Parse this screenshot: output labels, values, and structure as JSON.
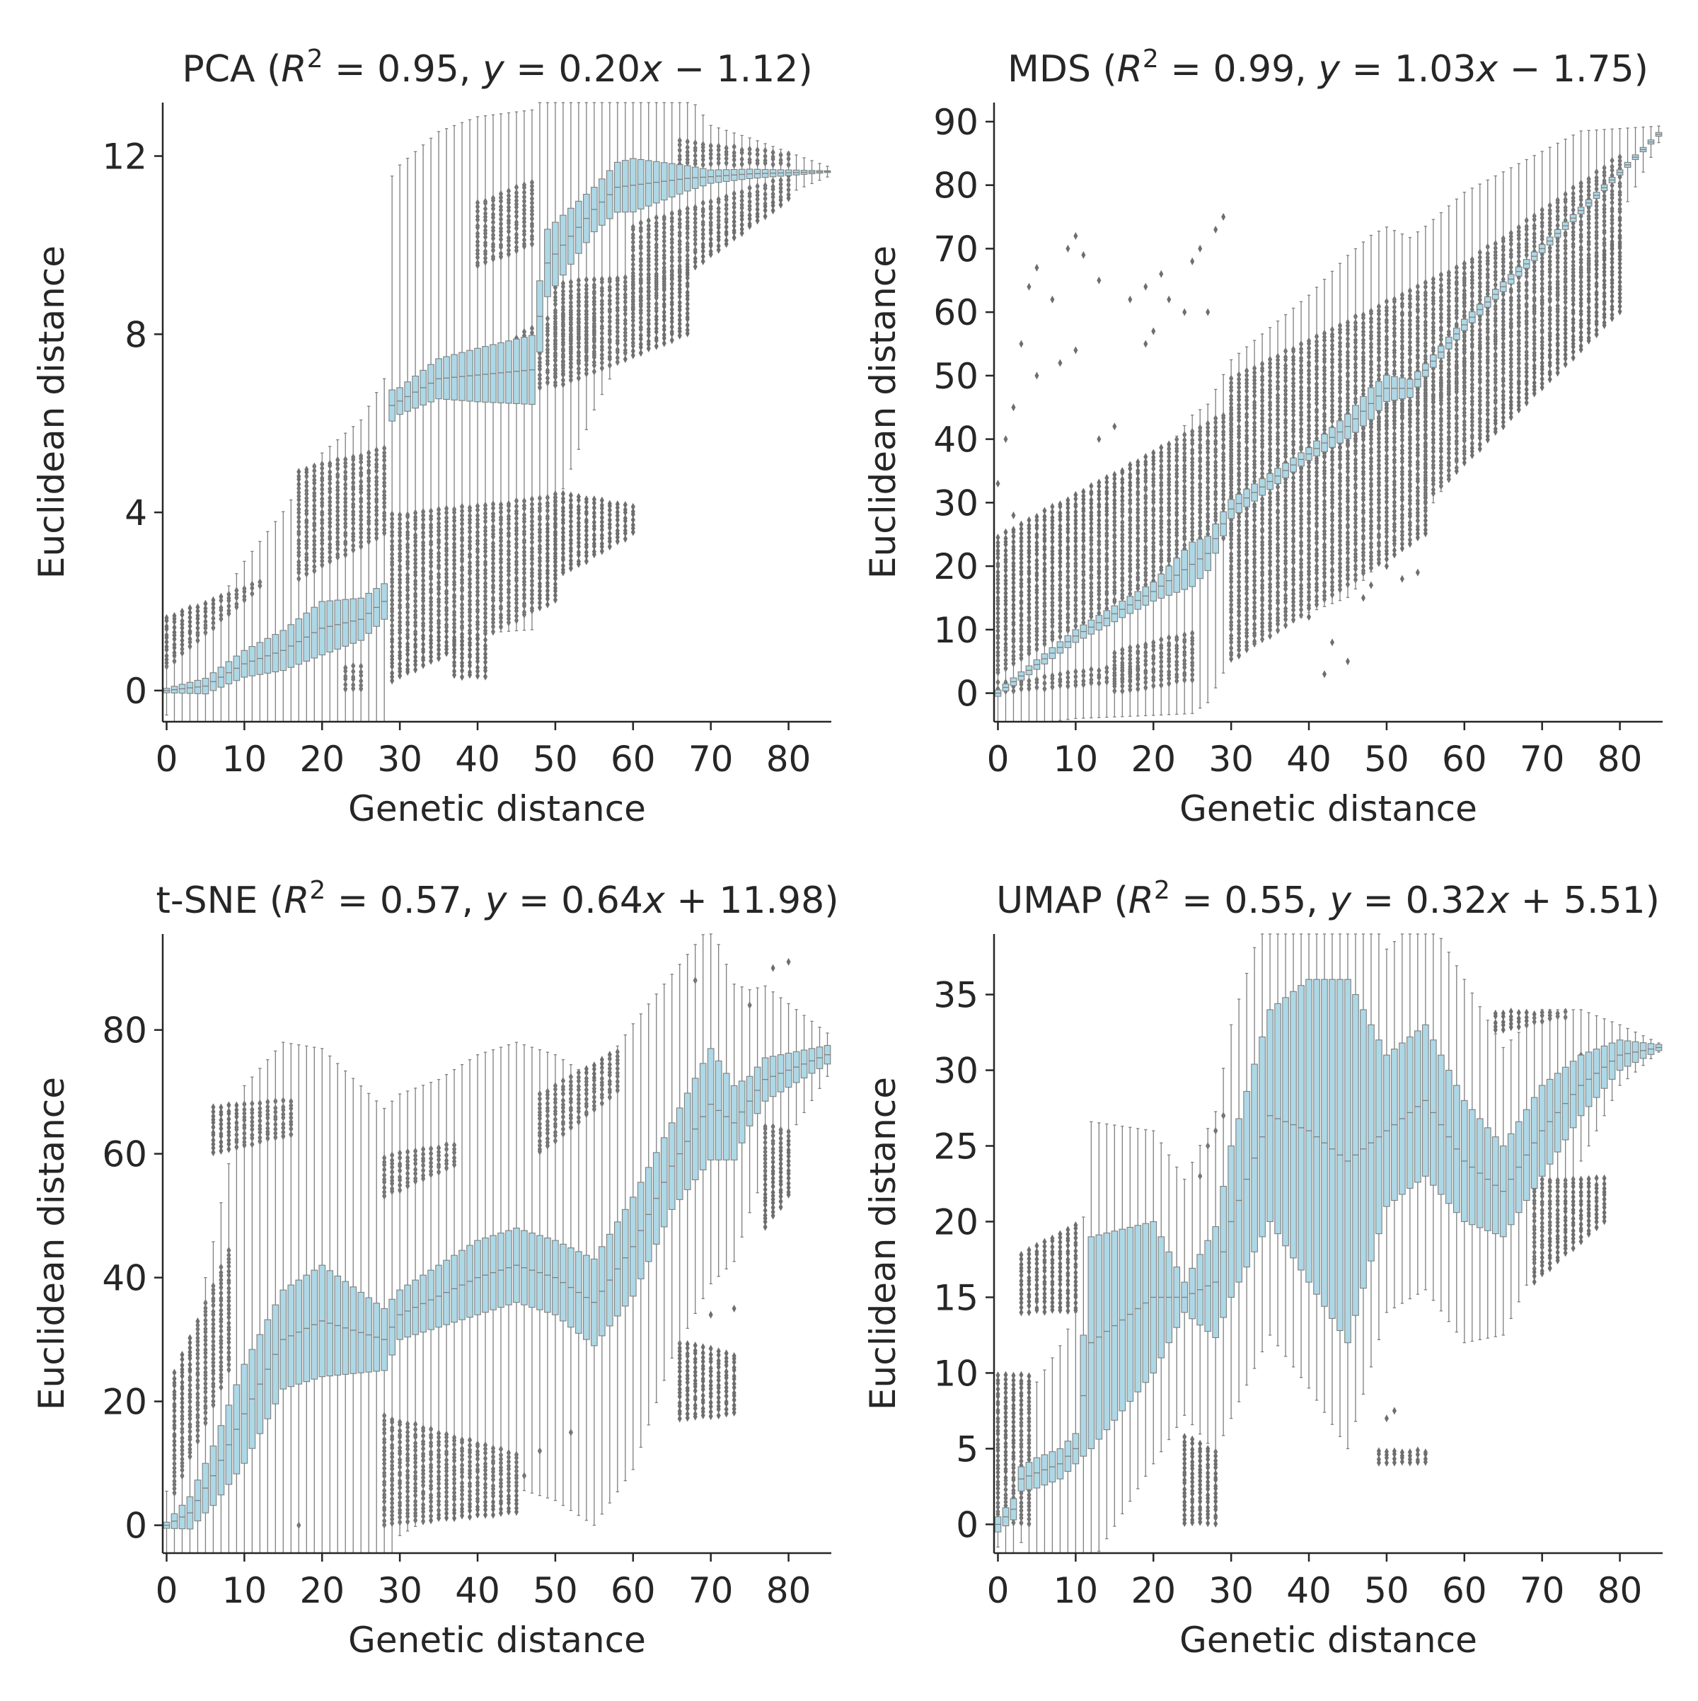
{
  "colors": {
    "box": "#add8e6",
    "edge": "#7f7f7f",
    "flier": "#6e6e6e",
    "axis": "#262626"
  },
  "chart_data": [
    {
      "type": "box",
      "title": "PCA (R² = 0.95, y = 0.20x − 1.12)",
      "title_parts": {
        "method": "PCA",
        "r2": "0.95",
        "slope": "0.20",
        "sign": "−",
        "intercept": "1.12"
      },
      "xlabel": "Genetic distance",
      "ylabel": "Euclidean distance",
      "xlim": [
        -0.5,
        85.5
      ],
      "ylim": [
        -0.7,
        13.2
      ],
      "xticks": [
        0,
        10,
        20,
        30,
        40,
        50,
        60,
        70,
        80
      ],
      "yticks": [
        0,
        4,
        8,
        12
      ],
      "median_knots": [
        [
          0,
          0
        ],
        [
          5,
          0.1
        ],
        [
          10,
          0.6
        ],
        [
          15,
          0.9
        ],
        [
          20,
          1.4
        ],
        [
          25,
          1.6
        ],
        [
          28,
          2.0
        ],
        [
          29,
          6.4
        ],
        [
          35,
          7.0
        ],
        [
          47,
          7.2
        ],
        [
          49,
          9.6
        ],
        [
          55,
          10.8
        ],
        [
          58,
          11.3
        ],
        [
          67,
          11.5
        ],
        [
          75,
          11.6
        ],
        [
          85,
          11.65
        ]
      ],
      "boxhalf_knots": [
        [
          0,
          0.05
        ],
        [
          10,
          0.3
        ],
        [
          20,
          0.6
        ],
        [
          28,
          0.4
        ],
        [
          30,
          0.3
        ],
        [
          40,
          0.6
        ],
        [
          48,
          0.8
        ],
        [
          55,
          0.5
        ],
        [
          60,
          0.6
        ],
        [
          70,
          0.15
        ],
        [
          85,
          0.02
        ]
      ],
      "whisker_knots": [
        [
          0,
          0.5
        ],
        [
          10,
          2.0
        ],
        [
          25,
          4.0
        ],
        [
          30,
          5.0
        ],
        [
          40,
          5.2
        ],
        [
          50,
          5.0
        ],
        [
          60,
          3.0
        ],
        [
          70,
          1.0
        ],
        [
          85,
          0.1
        ]
      ],
      "flier_groups": [
        {
          "x": [
            0,
            12
          ],
          "lo": [
            0.5,
            2.3
          ],
          "hi": [
            1.7,
            2.5
          ]
        },
        {
          "x": [
            17,
            28
          ],
          "lo": [
            2.5,
            3.5
          ],
          "hi": [
            5.0,
            5.5
          ]
        },
        {
          "x": [
            23,
            25
          ],
          "lo": [
            0.0,
            0.0
          ],
          "hi": [
            0.6,
            0.6
          ]
        },
        {
          "x": [
            29,
            50
          ],
          "lo": [
            0.2,
            2.0
          ],
          "hi": [
            4.0,
            4.4
          ]
        },
        {
          "x": [
            50,
            60
          ],
          "lo": [
            2.5,
            3.5
          ],
          "hi": [
            4.5,
            4.2
          ]
        },
        {
          "x": [
            37,
            41
          ],
          "lo": [
            0.3,
            0.3
          ],
          "hi": [
            1.2,
            1.2
          ]
        },
        {
          "x": [
            45,
            55
          ],
          "lo": [
            6.5,
            7.5
          ],
          "hi": [
            8.0,
            9.0
          ]
        },
        {
          "x": [
            50,
            67
          ],
          "lo": [
            6.8,
            8.0
          ],
          "hi": [
            9.2,
            9.5
          ]
        },
        {
          "x": [
            60,
            80
          ],
          "lo": [
            8.5,
            11.0
          ],
          "hi": [
            10.5,
            11.6
          ]
        },
        {
          "x": [
            40,
            47
          ],
          "lo": [
            9.5,
            10.0
          ],
          "hi": [
            11.0,
            11.5
          ]
        },
        {
          "x": [
            66,
            80
          ],
          "lo": [
            11.8,
            11.8
          ],
          "hi": [
            12.4,
            12.1
          ]
        }
      ]
    },
    {
      "type": "box",
      "title": "MDS (R² = 0.99, y = 1.03x − 1.75)",
      "title_parts": {
        "method": "MDS",
        "r2": "0.99",
        "slope": "1.03",
        "sign": "−",
        "intercept": "1.75"
      },
      "xlabel": "Genetic distance",
      "ylabel": "Euclidean distance",
      "xlim": [
        -0.5,
        85.5
      ],
      "ylim": [
        -4.5,
        93
      ],
      "xticks": [
        0,
        10,
        20,
        30,
        40,
        50,
        60,
        70,
        80
      ],
      "yticks": [
        0,
        10,
        20,
        30,
        40,
        50,
        60,
        70,
        80,
        90
      ],
      "median_knots": [
        [
          0,
          0
        ],
        [
          10,
          9
        ],
        [
          20,
          16
        ],
        [
          27,
          22
        ],
        [
          30,
          29
        ],
        [
          45,
          42
        ],
        [
          50,
          48
        ],
        [
          53,
          48
        ],
        [
          60,
          58
        ],
        [
          70,
          70
        ],
        [
          80,
          82
        ],
        [
          85,
          88
        ]
      ],
      "boxhalf_knots": [
        [
          0,
          0.5
        ],
        [
          20,
          1.5
        ],
        [
          25,
          3.5
        ],
        [
          30,
          1.5
        ],
        [
          40,
          1
        ],
        [
          48,
          2.5
        ],
        [
          55,
          1
        ],
        [
          85,
          0.3
        ]
      ],
      "whisker_knots": [
        [
          0,
          5
        ],
        [
          10,
          12
        ],
        [
          20,
          18
        ],
        [
          30,
          22
        ],
        [
          45,
          25
        ],
        [
          60,
          20
        ],
        [
          75,
          12
        ],
        [
          85,
          1
        ]
      ],
      "flier_groups": [
        {
          "x": [
            0,
            30
          ],
          "lo": [
            3,
            25
          ],
          "hi": [
            25,
            45
          ]
        },
        {
          "x": [
            30,
            60
          ],
          "lo": [
            30,
            48
          ],
          "hi": [
            50,
            68
          ]
        },
        {
          "x": [
            60,
            80
          ],
          "lo": [
            52,
            70
          ],
          "hi": [
            68,
            85
          ]
        },
        {
          "x": [
            0,
            18
          ],
          "lo": [
            0,
            2
          ],
          "hi": [
            2,
            5
          ]
        },
        {
          "x": [
            15,
            25
          ],
          "lo": [
            0,
            2
          ],
          "hi": [
            7,
            10
          ]
        },
        {
          "x": [
            30,
            55
          ],
          "lo": [
            5,
            25
          ],
          "hi": [
            30,
            50
          ]
        },
        {
          "x": [
            55,
            80
          ],
          "lo": [
            30,
            60
          ],
          "hi": [
            48,
            72
          ]
        }
      ],
      "sparse_fliers": [
        [
          0,
          33
        ],
        [
          1,
          40
        ],
        [
          2,
          45
        ],
        [
          3,
          55
        ],
        [
          4,
          64
        ],
        [
          5,
          67
        ],
        [
          7,
          62
        ],
        [
          9,
          70
        ],
        [
          10,
          72
        ],
        [
          11,
          69
        ],
        [
          13,
          65
        ],
        [
          17,
          62
        ],
        [
          19,
          64
        ],
        [
          21,
          66
        ],
        [
          22,
          62
        ],
        [
          19,
          55
        ],
        [
          20,
          57
        ],
        [
          25,
          68
        ],
        [
          26,
          70
        ],
        [
          28,
          73
        ],
        [
          29,
          75
        ],
        [
          24,
          60
        ],
        [
          27,
          60
        ],
        [
          13,
          40
        ],
        [
          15,
          42
        ],
        [
          5,
          50
        ],
        [
          8,
          52
        ],
        [
          10,
          54
        ],
        [
          2,
          28
        ],
        [
          40,
          12
        ],
        [
          43,
          8
        ],
        [
          45,
          5
        ],
        [
          50,
          20
        ],
        [
          52,
          18
        ],
        [
          54,
          19
        ],
        [
          47,
          15
        ],
        [
          42,
          3
        ],
        [
          48,
          17
        ]
      ]
    },
    {
      "type": "box",
      "title": "t-SNE (R² = 0.57, y = 0.64x + 11.98)",
      "title_parts": {
        "method": "t-SNE",
        "r2": "0.57",
        "slope": "0.64",
        "sign": "+",
        "intercept": "11.98"
      },
      "xlabel": "Genetic distance",
      "ylabel": "Euclidean distance",
      "xlim": [
        -0.5,
        85.5
      ],
      "ylim": [
        -4.5,
        95.5
      ],
      "xticks": [
        0,
        10,
        20,
        30,
        40,
        50,
        60,
        70,
        80
      ],
      "yticks": [
        0,
        20,
        40,
        60,
        80
      ],
      "median_knots": [
        [
          0,
          0
        ],
        [
          3,
          2
        ],
        [
          6,
          8
        ],
        [
          10,
          18
        ],
        [
          15,
          30
        ],
        [
          20,
          33
        ],
        [
          28,
          30
        ],
        [
          30,
          34
        ],
        [
          40,
          40
        ],
        [
          45,
          42
        ],
        [
          50,
          40
        ],
        [
          55,
          36
        ],
        [
          60,
          45
        ],
        [
          65,
          58
        ],
        [
          70,
          68
        ],
        [
          73,
          65
        ],
        [
          77,
          72
        ],
        [
          85,
          76
        ]
      ],
      "boxhalf_knots": [
        [
          0,
          0.5
        ],
        [
          5,
          4
        ],
        [
          10,
          8
        ],
        [
          15,
          8
        ],
        [
          20,
          9
        ],
        [
          30,
          4
        ],
        [
          40,
          6
        ],
        [
          50,
          6
        ],
        [
          60,
          8
        ],
        [
          65,
          7
        ],
        [
          70,
          9
        ],
        [
          75,
          4
        ],
        [
          85,
          1.5
        ]
      ],
      "whisker_knots": [
        [
          0,
          5
        ],
        [
          5,
          30
        ],
        [
          10,
          45
        ],
        [
          20,
          35
        ],
        [
          35,
          30
        ],
        [
          50,
          30
        ],
        [
          60,
          28
        ],
        [
          70,
          20
        ],
        [
          80,
          8
        ],
        [
          85,
          2
        ]
      ],
      "flier_groups": [
        {
          "x": [
            6,
            16
          ],
          "lo": [
            60,
            63
          ],
          "hi": [
            68,
            69
          ]
        },
        {
          "x": [
            28,
            37
          ],
          "lo": [
            53,
            58
          ],
          "hi": [
            60,
            62
          ]
        },
        {
          "x": [
            28,
            45
          ],
          "lo": [
            0,
            2
          ],
          "hi": [
            18,
            12
          ]
        },
        {
          "x": [
            48,
            58
          ],
          "lo": [
            60,
            70
          ],
          "hi": [
            70,
            77
          ]
        },
        {
          "x": [
            66,
            73
          ],
          "lo": [
            17,
            18
          ],
          "hi": [
            30,
            28
          ]
        },
        {
          "x": [
            77,
            80
          ],
          "lo": [
            48,
            53
          ],
          "hi": [
            65,
            64
          ]
        },
        {
          "x": [
            1,
            8
          ],
          "lo": [
            5,
            25
          ],
          "hi": [
            25,
            45
          ]
        }
      ],
      "sparse_fliers": [
        [
          80,
          91
        ],
        [
          78,
          90
        ],
        [
          68,
          88
        ],
        [
          75,
          84
        ],
        [
          73,
          35
        ],
        [
          70,
          34
        ],
        [
          52,
          15
        ],
        [
          48,
          12
        ],
        [
          46,
          8
        ],
        [
          17,
          0
        ]
      ]
    },
    {
      "type": "box",
      "title": "UMAP (R² = 0.55, y = 0.32x + 5.51)",
      "title_parts": {
        "method": "UMAP",
        "r2": "0.55",
        "slope": "0.32",
        "sign": "+",
        "intercept": "5.51"
      },
      "xlabel": "Genetic distance",
      "ylabel": "Euclidean distance",
      "xlim": [
        -0.5,
        85.5
      ],
      "ylim": [
        -1.9,
        39
      ],
      "xticks": [
        0,
        10,
        20,
        30,
        40,
        50,
        60,
        70,
        80
      ],
      "yticks": [
        0,
        5,
        10,
        15,
        20,
        25,
        30,
        35
      ],
      "median_knots": [
        [
          0,
          0
        ],
        [
          2,
          1
        ],
        [
          3,
          3
        ],
        [
          8,
          4
        ],
        [
          10,
          5
        ],
        [
          12,
          12
        ],
        [
          20,
          15
        ],
        [
          24,
          15
        ],
        [
          28,
          16
        ],
        [
          30,
          20
        ],
        [
          35,
          27
        ],
        [
          40,
          26
        ],
        [
          45,
          24
        ],
        [
          50,
          26
        ],
        [
          55,
          28
        ],
        [
          60,
          24
        ],
        [
          65,
          22
        ],
        [
          70,
          26
        ],
        [
          75,
          29
        ],
        [
          80,
          31
        ],
        [
          85,
          31.5
        ]
      ],
      "boxhalf_knots": [
        [
          0,
          0.5
        ],
        [
          5,
          1
        ],
        [
          10,
          1
        ],
        [
          12,
          7
        ],
        [
          20,
          5
        ],
        [
          24,
          1
        ],
        [
          30,
          5
        ],
        [
          35,
          7
        ],
        [
          40,
          10
        ],
        [
          45,
          12
        ],
        [
          50,
          5
        ],
        [
          55,
          5
        ],
        [
          60,
          4
        ],
        [
          65,
          3
        ],
        [
          70,
          3
        ],
        [
          80,
          1
        ],
        [
          85,
          0.2
        ]
      ],
      "whisker_knots": [
        [
          0,
          1
        ],
        [
          5,
          5
        ],
        [
          10,
          8
        ],
        [
          20,
          6
        ],
        [
          30,
          8
        ],
        [
          40,
          7
        ],
        [
          50,
          7
        ],
        [
          60,
          8
        ],
        [
          70,
          5
        ],
        [
          80,
          1
        ],
        [
          85,
          0.1
        ]
      ],
      "flier_groups": [
        {
          "x": [
            0,
            4
          ],
          "lo": [
            0,
            0
          ],
          "hi": [
            10,
            10
          ]
        },
        {
          "x": [
            3,
            10
          ],
          "lo": [
            14,
            14
          ],
          "hi": [
            18,
            20
          ]
        },
        {
          "x": [
            24,
            28
          ],
          "lo": [
            0,
            0
          ],
          "hi": [
            6,
            5
          ]
        },
        {
          "x": [
            49,
            55
          ],
          "lo": [
            4,
            4
          ],
          "hi": [
            5,
            5
          ]
        },
        {
          "x": [
            69,
            78
          ],
          "lo": [
            16,
            20
          ],
          "hi": [
            23,
            23
          ]
        },
        {
          "x": [
            64,
            73
          ],
          "lo": [
            32.5,
            33.5
          ],
          "hi": [
            34,
            34
          ]
        }
      ],
      "sparse_fliers": [
        [
          26,
          23
        ],
        [
          27,
          25
        ],
        [
          28,
          26
        ],
        [
          29,
          27
        ],
        [
          50,
          7
        ],
        [
          51,
          7.5
        ],
        [
          75,
          31
        ],
        [
          77,
          31
        ],
        [
          79,
          30.5
        ],
        [
          80,
          31
        ]
      ]
    }
  ]
}
